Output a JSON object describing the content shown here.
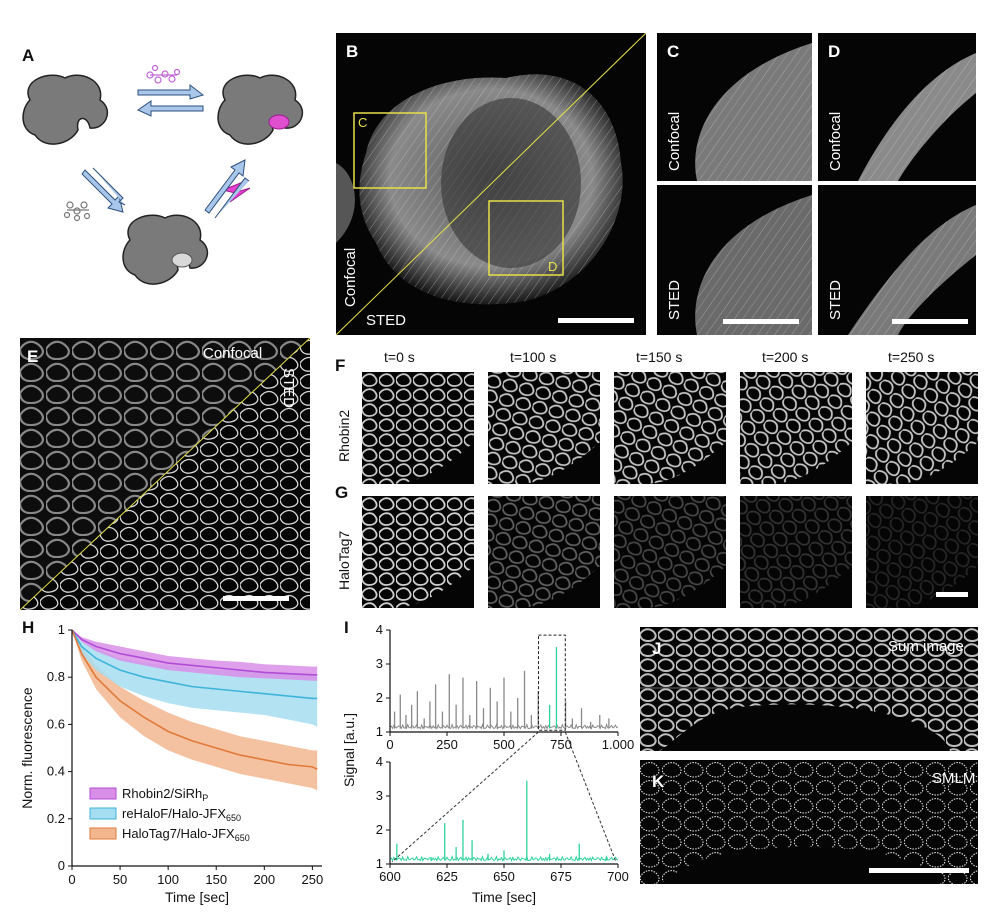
{
  "panels": {
    "A": {
      "letter": "A"
    },
    "B": {
      "letter": "B",
      "box1": "C",
      "box2": "D",
      "confocal": "Confocal",
      "sted": "STED"
    },
    "C": {
      "letter": "C",
      "top": "Confocal",
      "bottom": "STED"
    },
    "D": {
      "letter": "D",
      "top": "Confocal",
      "bottom": "STED"
    },
    "E": {
      "letter": "E",
      "confocal": "Confocal",
      "sted": "STED"
    },
    "F": {
      "letter": "F",
      "row_label": "Rhobin2"
    },
    "G": {
      "letter": "G",
      "row_label": "HaloTag7"
    },
    "time_labels": [
      "t=0 s",
      "t=100 s",
      "t=150 s",
      "t=200 s",
      "t=250 s"
    ],
    "H": {
      "letter": "H"
    },
    "I": {
      "letter": "I"
    },
    "J": {
      "letter": "J",
      "label": "Sum image"
    },
    "K": {
      "letter": "K",
      "label": "SMLM"
    }
  },
  "colors": {
    "purple": "#b04dd6",
    "purple_band": "#d98ee8",
    "blue": "#3fb4d9",
    "blue_band": "#a6def1",
    "orange": "#e07a3a",
    "orange_band": "#f3b790",
    "green": "#2fd39a",
    "gray_trace": "#8a8a8a",
    "box_yellow": "#e6e04a"
  },
  "chart_data": [
    {
      "type": "line",
      "panel": "H",
      "xlabel": "Time [sec]",
      "ylabel": "Norm. fluorescence",
      "xlim": [
        0,
        260
      ],
      "ylim": [
        0,
        1.0
      ],
      "x_ticks": [
        0,
        50,
        100,
        150,
        200,
        250
      ],
      "y_ticks": [
        0,
        0.2,
        0.4,
        0.6,
        0.8,
        1
      ],
      "x_tick_labels": [
        "0",
        "50",
        "100",
        "150",
        "200",
        "250"
      ],
      "y_tick_labels": [
        "0",
        "0.2",
        "0.4",
        "0.6",
        "0.8",
        "1"
      ],
      "legend_position": "bottom-left",
      "series": [
        {
          "name": "Rhobin2/SiRh",
          "sub": "P",
          "color": "#b04dd6",
          "band": "#d98ee8",
          "x": [
            0,
            10,
            25,
            50,
            75,
            100,
            125,
            150,
            175,
            200,
            225,
            250,
            255
          ],
          "y": [
            1.0,
            0.96,
            0.93,
            0.9,
            0.88,
            0.86,
            0.85,
            0.84,
            0.83,
            0.82,
            0.815,
            0.81,
            0.81
          ],
          "lower": [
            1.0,
            0.95,
            0.91,
            0.87,
            0.85,
            0.83,
            0.82,
            0.81,
            0.8,
            0.795,
            0.79,
            0.785,
            0.785
          ],
          "upper": [
            1.0,
            0.97,
            0.95,
            0.93,
            0.91,
            0.89,
            0.88,
            0.87,
            0.865,
            0.855,
            0.85,
            0.845,
            0.845
          ]
        },
        {
          "name": "reHaloF/Halo-JFX",
          "sub": "650",
          "color": "#3fb4d9",
          "band": "#a6def1",
          "x": [
            0,
            10,
            25,
            50,
            75,
            100,
            125,
            150,
            175,
            200,
            225,
            250,
            255
          ],
          "y": [
            1.0,
            0.93,
            0.88,
            0.83,
            0.8,
            0.78,
            0.76,
            0.75,
            0.74,
            0.73,
            0.72,
            0.71,
            0.71
          ],
          "lower": [
            1.0,
            0.9,
            0.83,
            0.76,
            0.72,
            0.69,
            0.67,
            0.66,
            0.65,
            0.64,
            0.62,
            0.6,
            0.59
          ],
          "upper": [
            1.0,
            0.95,
            0.92,
            0.88,
            0.86,
            0.85,
            0.84,
            0.83,
            0.83,
            0.82,
            0.82,
            0.81,
            0.81
          ]
        },
        {
          "name": "HaloTag7/Halo-JFX",
          "sub": "650",
          "color": "#e07a3a",
          "band": "#f3b790",
          "x": [
            0,
            10,
            25,
            50,
            75,
            100,
            125,
            150,
            175,
            200,
            225,
            250,
            255
          ],
          "y": [
            1.0,
            0.9,
            0.8,
            0.7,
            0.63,
            0.57,
            0.53,
            0.5,
            0.47,
            0.45,
            0.43,
            0.42,
            0.41
          ],
          "lower": [
            1.0,
            0.87,
            0.75,
            0.63,
            0.55,
            0.49,
            0.45,
            0.42,
            0.39,
            0.37,
            0.35,
            0.33,
            0.32
          ],
          "upper": [
            1.0,
            0.93,
            0.85,
            0.76,
            0.7,
            0.65,
            0.61,
            0.58,
            0.55,
            0.53,
            0.51,
            0.49,
            0.49
          ]
        }
      ]
    },
    {
      "type": "line",
      "panel": "I-top",
      "ylabel": "Signal [a.u.]",
      "xlim": [
        0,
        1000
      ],
      "ylim": [
        1,
        4
      ],
      "x_ticks": [
        0,
        250,
        500,
        750,
        1000
      ],
      "x_tick_labels": [
        "0",
        "250",
        "500",
        "750",
        "1.000"
      ],
      "y_ticks": [
        1,
        2,
        3,
        4
      ],
      "y_tick_labels": [
        "1",
        "2",
        "3",
        "4"
      ],
      "spikes_x": [
        20,
        45,
        70,
        95,
        120,
        150,
        175,
        200,
        230,
        260,
        290,
        320,
        350,
        380,
        410,
        440,
        470,
        500,
        530,
        560,
        590,
        620,
        650,
        700,
        730,
        770,
        800,
        840,
        880,
        920,
        960
      ],
      "spikes_y": [
        1.6,
        2.1,
        1.5,
        1.8,
        2.2,
        1.4,
        1.9,
        2.4,
        1.6,
        2.7,
        1.8,
        2.6,
        1.5,
        2.5,
        1.7,
        2.3,
        1.9,
        2.6,
        1.6,
        2.0,
        2.8,
        1.5,
        2.2,
        1.8,
        3.5,
        1.9,
        1.4,
        1.7,
        1.3,
        1.5,
        1.4
      ],
      "highlight_range": [
        660,
        760
      ]
    },
    {
      "type": "line",
      "panel": "I-bottom",
      "xlabel": "Time [sec]",
      "xlim": [
        600,
        700
      ],
      "ylim": [
        1,
        4
      ],
      "x_ticks": [
        600,
        625,
        650,
        675,
        700
      ],
      "x_tick_labels": [
        "600",
        "625",
        "650",
        "675",
        "700"
      ],
      "y_ticks": [
        1,
        2,
        3,
        4
      ],
      "y_tick_labels": [
        "1",
        "2",
        "3",
        "4"
      ],
      "spikes_x": [
        603,
        618,
        624,
        629,
        632,
        636,
        643,
        650,
        660,
        670,
        683,
        695
      ],
      "spikes_y": [
        1.6,
        1.2,
        2.2,
        1.5,
        2.3,
        1.7,
        1.3,
        1.4,
        3.45,
        1.3,
        1.6,
        1.2
      ]
    }
  ]
}
